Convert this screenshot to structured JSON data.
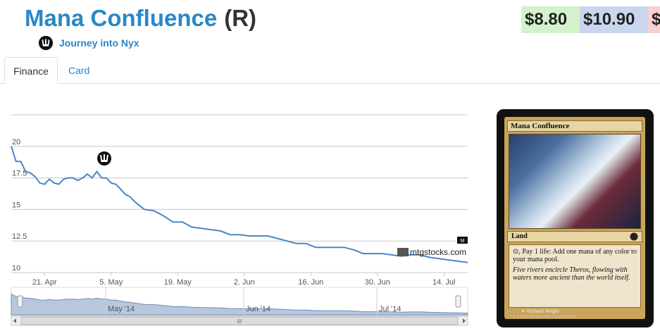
{
  "header": {
    "card_name": "Mana Confluence",
    "rarity": "(R)",
    "set_name": "Journey into Nyx",
    "set_icon": "nyx-set-icon"
  },
  "prices": [
    {
      "label": "$8.80",
      "color": "#d4f1cd"
    },
    {
      "label": "$10.90",
      "color": "#c9d6ee"
    },
    {
      "label": "$",
      "color": "#f6d1d1"
    }
  ],
  "tabs": [
    {
      "label": "Finance",
      "active": true
    },
    {
      "label": "Card",
      "active": false
    }
  ],
  "chart_data": {
    "type": "line",
    "y_ticks": [
      "20",
      "17.5",
      "15",
      "12.5",
      "10"
    ],
    "ylim": [
      10,
      22.5
    ],
    "x_ticks": [
      "21. Apr",
      "5. May",
      "19. May",
      "2. Jun",
      "16. Jun",
      "30. Jun",
      "14. Jul"
    ],
    "navigator_labels": [
      "May '14",
      "Jun '14",
      "Jul '14"
    ],
    "credit": "mtgstocks.com",
    "line_color": "#4a86c8",
    "grid": true,
    "series": [
      {
        "x": [
          "Apr 14",
          "Apr 15",
          "Apr 16",
          "Apr 17",
          "Apr 18",
          "Apr 19",
          "Apr 20",
          "Apr 21",
          "Apr 22",
          "Apr 23",
          "Apr 24",
          "Apr 25",
          "Apr 26",
          "Apr 27",
          "Apr 28",
          "Apr 29",
          "Apr 30",
          "May 1",
          "May 2",
          "May 3",
          "May 4",
          "May 5",
          "May 6",
          "May 7",
          "May 8",
          "May 9",
          "May 10",
          "May 12",
          "May 14",
          "May 16",
          "May 18",
          "May 20",
          "May 22",
          "May 24",
          "May 26",
          "May 28",
          "May 30",
          "Jun 1",
          "Jun 3",
          "Jun 5",
          "Jun 7",
          "Jun 9",
          "Jun 11",
          "Jun 13",
          "Jun 15",
          "Jun 17",
          "Jun 19",
          "Jun 21",
          "Jun 23",
          "Jun 25",
          "Jun 27",
          "Jun 29",
          "Jul 1",
          "Jul 3",
          "Jul 5",
          "Jul 7",
          "Jul 9",
          "Jul 11",
          "Jul 13",
          "Jul 15",
          "Jul 17",
          "Jul 19"
        ],
        "values": [
          20.0,
          18.8,
          18.8,
          18.0,
          17.9,
          17.6,
          17.1,
          17.0,
          17.4,
          17.1,
          17.0,
          17.4,
          17.5,
          17.5,
          17.3,
          17.5,
          17.8,
          17.5,
          18.0,
          17.5,
          17.5,
          17.1,
          17.0,
          16.6,
          16.2,
          16.0,
          15.6,
          15.0,
          14.9,
          14.5,
          14.0,
          14.0,
          13.6,
          13.5,
          13.4,
          13.3,
          13.0,
          13.0,
          12.9,
          12.9,
          12.9,
          12.7,
          12.5,
          12.3,
          12.3,
          12.0,
          12.0,
          12.0,
          12.0,
          11.8,
          11.5,
          11.5,
          11.5,
          11.4,
          11.3,
          11.4,
          11.4,
          11.2,
          11.1,
          11.0,
          10.9,
          10.8
        ]
      }
    ]
  },
  "card_image": {
    "name": "Mana Confluence",
    "type_line": "Land",
    "rules_text": "⊙, Pay 1 life: Add one mana of any color to your mana pool.",
    "flavor_text": "Five rivers encircle Theros, flowing with waters more ancient than the world itself.",
    "artist": "Richard Wright",
    "legal": "™ & © 2014 Wizards of the Coast 163/165"
  }
}
